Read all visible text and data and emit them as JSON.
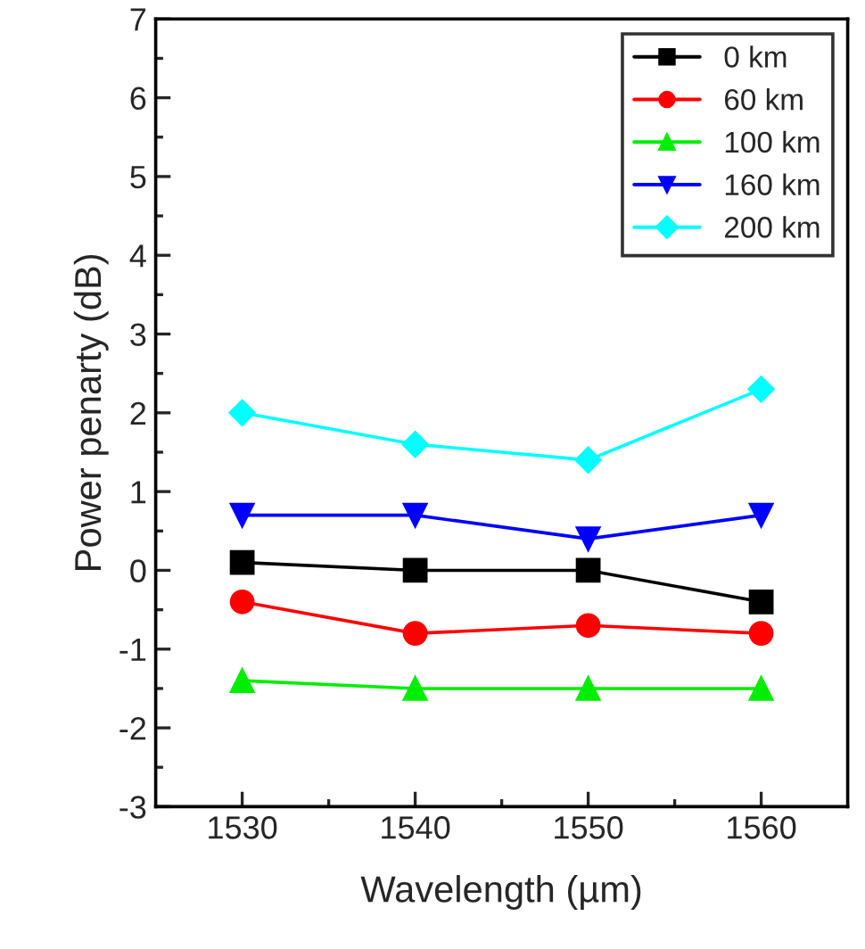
{
  "chart_data": {
    "type": "line",
    "xlabel": "Wavelength (µm)",
    "ylabel": "Power penarty (dB)",
    "x": [
      1530,
      1540,
      1550,
      1560
    ],
    "xlim": [
      1525,
      1565
    ],
    "xticks": [
      1530,
      1540,
      1550,
      1560
    ],
    "ylim": [
      -3,
      7
    ],
    "yticks": [
      -3,
      -2,
      -1,
      0,
      1,
      2,
      3,
      4,
      5,
      6,
      7
    ],
    "grid": false,
    "legend": "top right",
    "line_style": "solid",
    "series": [
      {
        "name": "0 km",
        "color": "#000000",
        "marker": "square",
        "values": [
          0.1,
          0,
          0,
          -0.4
        ]
      },
      {
        "name": "60 km",
        "color": "#ff0000",
        "marker": "circle",
        "values": [
          -0.4,
          -0.8,
          -0.7,
          -0.8
        ]
      },
      {
        "name": "100 km",
        "color": "#00ee00",
        "marker": "triangle",
        "values": [
          -1.4,
          -1.5,
          -1.5,
          -1.5
        ]
      },
      {
        "name": "160 km",
        "color": "#0000ff",
        "marker": "triangle_down",
        "values": [
          0.7,
          0.7,
          0.4,
          0.7
        ]
      },
      {
        "name": "200 km",
        "color": "#00ffff",
        "marker": "diamond",
        "values": [
          2.0,
          1.6,
          1.4,
          2.3
        ]
      }
    ]
  }
}
